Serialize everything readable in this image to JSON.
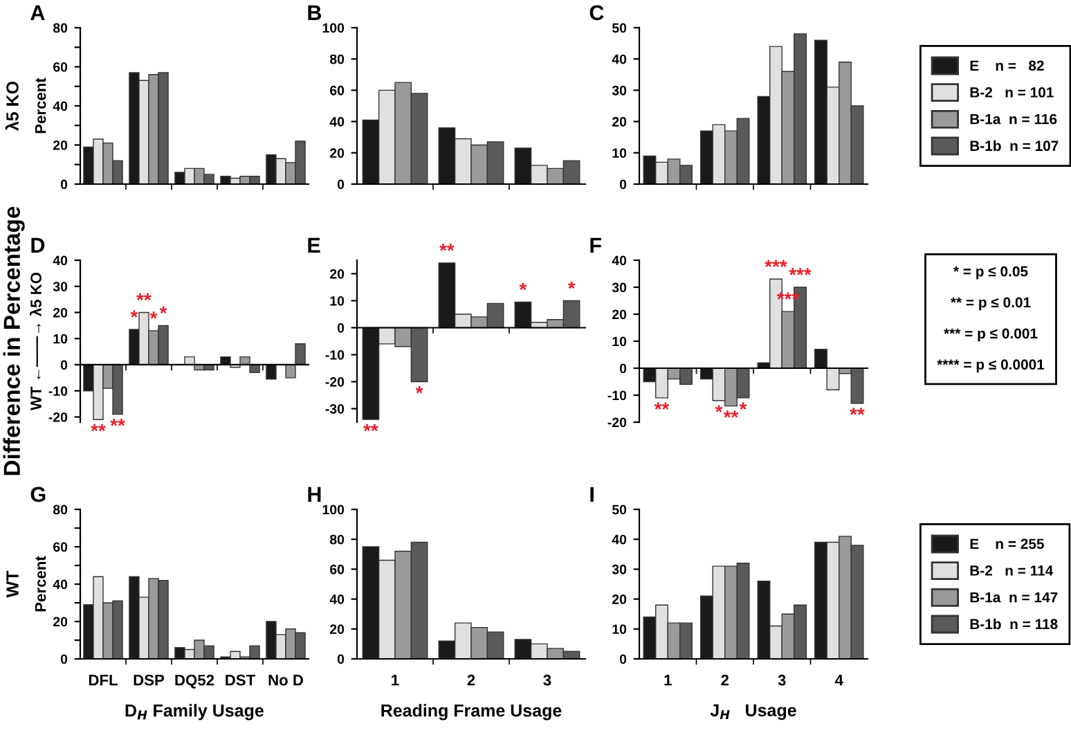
{
  "chart_data": [
    {
      "type": "bar",
      "title": "A",
      "ylabel": "Percent",
      "annotations": [
        "λ5 KO"
      ],
      "categories": [
        null,
        null,
        null,
        null,
        null
      ],
      "tick_labels": "y",
      "ylim": [
        0,
        80
      ],
      "yticks": [
        0,
        {
          "value": 10,
          "label": null
        },
        20,
        {
          "value": 30,
          "label": null
        },
        40,
        {
          "value": 50,
          "label": null
        },
        60,
        {
          "value": 70,
          "label": null
        },
        80
      ],
      "series": [
        {
          "color": "#1a1a1a",
          "values": [
            19,
            57,
            6,
            4,
            15
          ]
        },
        {
          "color": "#e0e0e0",
          "values": [
            23,
            53,
            8,
            3,
            13
          ]
        },
        {
          "color": "#9a9a9a",
          "values": [
            21,
            56,
            8,
            4,
            11
          ]
        },
        {
          "color": "#5a5a5a",
          "values": [
            12,
            57,
            5,
            4,
            22
          ]
        }
      ]
    },
    {
      "type": "bar",
      "title": "B",
      "categories": [
        null,
        null,
        null
      ],
      "tick_labels": "y",
      "ylim": [
        0,
        100
      ],
      "yticks": [
        0,
        20,
        40,
        60,
        80,
        100
      ],
      "series": [
        {
          "color": "#1a1a1a",
          "values": [
            41,
            36,
            23
          ]
        },
        {
          "color": "#e0e0e0",
          "values": [
            60,
            29,
            12
          ]
        },
        {
          "color": "#9a9a9a",
          "values": [
            65,
            25,
            10
          ]
        },
        {
          "color": "#5a5a5a",
          "values": [
            58,
            27,
            15
          ]
        }
      ]
    },
    {
      "type": "bar",
      "title": "C",
      "categories": [
        null,
        null,
        null,
        null
      ],
      "tick_labels": "y",
      "ylim": [
        0,
        50
      ],
      "yticks": [
        0,
        10,
        20,
        30,
        40,
        50
      ],
      "legend": "right",
      "series": [
        {
          "name": "E    n =   82",
          "color": "#1a1a1a",
          "values": [
            9,
            17,
            28,
            46
          ]
        },
        {
          "name": "B-2   n = 101",
          "color": "#e0e0e0",
          "values": [
            7,
            19,
            44,
            31
          ]
        },
        {
          "name": "B-1a  n = 116",
          "color": "#9a9a9a",
          "values": [
            8,
            17,
            36,
            39
          ]
        },
        {
          "name": "B-1b  n = 107",
          "color": "#5a5a5a",
          "values": [
            6,
            21,
            48,
            25
          ]
        }
      ]
    },
    {
      "type": "bar",
      "title": "D",
      "ylabel": "WT ←——→ λ5 KO",
      "annotations": [
        "Difference in Percentage"
      ],
      "categories": [
        null,
        null,
        null,
        null,
        null
      ],
      "tick_labels": "y",
      "ylim": [
        -22,
        40
      ],
      "yticks": [
        -20,
        -10,
        0,
        10,
        20,
        30,
        40
      ],
      "series": [
        {
          "color": "#1a1a1a",
          "values": [
            -10,
            13.5,
            null,
            3,
            -5.5
          ],
          "value_labels": [
            null,
            "*",
            null,
            null,
            null
          ]
        },
        {
          "color": "#e0e0e0",
          "values": [
            -21,
            20,
            3,
            -1,
            null
          ],
          "value_labels": [
            "**",
            "**",
            null,
            null,
            null
          ]
        },
        {
          "color": "#9a9a9a",
          "values": [
            -9,
            13,
            -2,
            3,
            -5
          ],
          "value_labels": [
            null,
            "*",
            null,
            null,
            null
          ]
        },
        {
          "color": "#5a5a5a",
          "values": [
            -19,
            15,
            -2,
            -3,
            8
          ],
          "value_labels": [
            "**",
            "*",
            null,
            null,
            null
          ]
        }
      ]
    },
    {
      "type": "bar",
      "title": "E",
      "categories": [
        null,
        null,
        null
      ],
      "tick_labels": "y",
      "ylim": [
        -35,
        25
      ],
      "yticks": [
        -30,
        -20,
        -10,
        0,
        10,
        20
      ],
      "series": [
        {
          "color": "#1a1a1a",
          "values": [
            -34,
            24,
            9.5
          ],
          "value_labels": [
            "**",
            "**",
            "*"
          ]
        },
        {
          "color": "#e0e0e0",
          "values": [
            -6,
            5,
            2
          ]
        },
        {
          "color": "#9a9a9a",
          "values": [
            -7,
            4,
            3
          ]
        },
        {
          "color": "#5a5a5a",
          "values": [
            -20,
            9,
            10
          ],
          "value_labels": [
            "*",
            null,
            "*"
          ]
        }
      ]
    },
    {
      "type": "bar",
      "title": "F",
      "annotations": [
        "* = p ≤ 0.05",
        "** = p ≤ 0.01",
        "*** = p ≤ 0.001",
        "**** = p ≤ 0.0001"
      ],
      "categories": [
        null,
        null,
        null,
        null
      ],
      "tick_labels": "y",
      "ylim": [
        -20,
        40
      ],
      "yticks": [
        -20,
        -10,
        0,
        10,
        20,
        30,
        40
      ],
      "series": [
        {
          "color": "#1a1a1a",
          "values": [
            -5,
            -4,
            2,
            7
          ]
        },
        {
          "color": "#e0e0e0",
          "values": [
            -11,
            -12,
            33,
            -8
          ],
          "value_labels": [
            "**",
            "*",
            "***",
            null
          ]
        },
        {
          "color": "#9a9a9a",
          "values": [
            -4,
            -14,
            21,
            -2
          ],
          "value_labels": [
            null,
            "**",
            "***",
            null
          ]
        },
        {
          "color": "#5a5a5a",
          "values": [
            -6,
            -11,
            30,
            -13
          ],
          "value_labels": [
            null,
            "*",
            "***",
            "**"
          ]
        }
      ]
    },
    {
      "type": "bar",
      "title": "G",
      "ylabel": "Percent",
      "xlabel": "D$_{H}$ Family Usage",
      "annotations": [
        "WT"
      ],
      "categories": [
        "DFL",
        "DSP",
        "DQ52",
        "DST",
        "No D"
      ],
      "ylim": [
        0,
        80
      ],
      "yticks": [
        0,
        {
          "value": 10,
          "label": null
        },
        20,
        {
          "value": 30,
          "label": null
        },
        40,
        {
          "value": 50,
          "label": null
        },
        60,
        {
          "value": 70,
          "label": null
        },
        80
      ],
      "series": [
        {
          "color": "#1a1a1a",
          "values": [
            29,
            44,
            6,
            1,
            20
          ]
        },
        {
          "color": "#e0e0e0",
          "values": [
            44,
            33,
            5,
            4,
            13
          ]
        },
        {
          "color": "#9a9a9a",
          "values": [
            30,
            43,
            10,
            1,
            16
          ]
        },
        {
          "color": "#5a5a5a",
          "values": [
            31,
            42,
            7,
            7,
            14
          ]
        }
      ]
    },
    {
      "type": "bar",
      "title": "H",
      "xlabel": "Reading Frame Usage",
      "categories": [
        "1",
        "2",
        "3"
      ],
      "ylim": [
        0,
        100
      ],
      "yticks": [
        0,
        20,
        40,
        60,
        80,
        100
      ],
      "series": [
        {
          "color": "#1a1a1a",
          "values": [
            75,
            12,
            13
          ]
        },
        {
          "color": "#e0e0e0",
          "values": [
            66,
            24,
            10
          ]
        },
        {
          "color": "#9a9a9a",
          "values": [
            72,
            21,
            7
          ]
        },
        {
          "color": "#5a5a5a",
          "values": [
            78,
            18,
            5
          ]
        }
      ]
    },
    {
      "type": "bar",
      "title": "I",
      "xlabel": "J$_{H}$   Usage",
      "categories": [
        "1",
        "2",
        "3",
        "4"
      ],
      "ylim": [
        0,
        50
      ],
      "yticks": [
        0,
        10,
        20,
        30,
        40,
        50
      ],
      "legend": "right",
      "series": [
        {
          "name": "E    n = 255",
          "color": "#1a1a1a",
          "values": [
            14,
            21,
            26,
            39
          ]
        },
        {
          "name": "B-2   n = 114",
          "color": "#e0e0e0",
          "values": [
            18,
            31,
            11,
            39
          ]
        },
        {
          "name": "B-1a  n = 147",
          "color": "#9a9a9a",
          "values": [
            12,
            31,
            15,
            41
          ]
        },
        {
          "name": "B-1b  n = 118",
          "color": "#5a5a5a",
          "values": [
            12,
            32,
            18,
            38
          ]
        }
      ]
    }
  ]
}
